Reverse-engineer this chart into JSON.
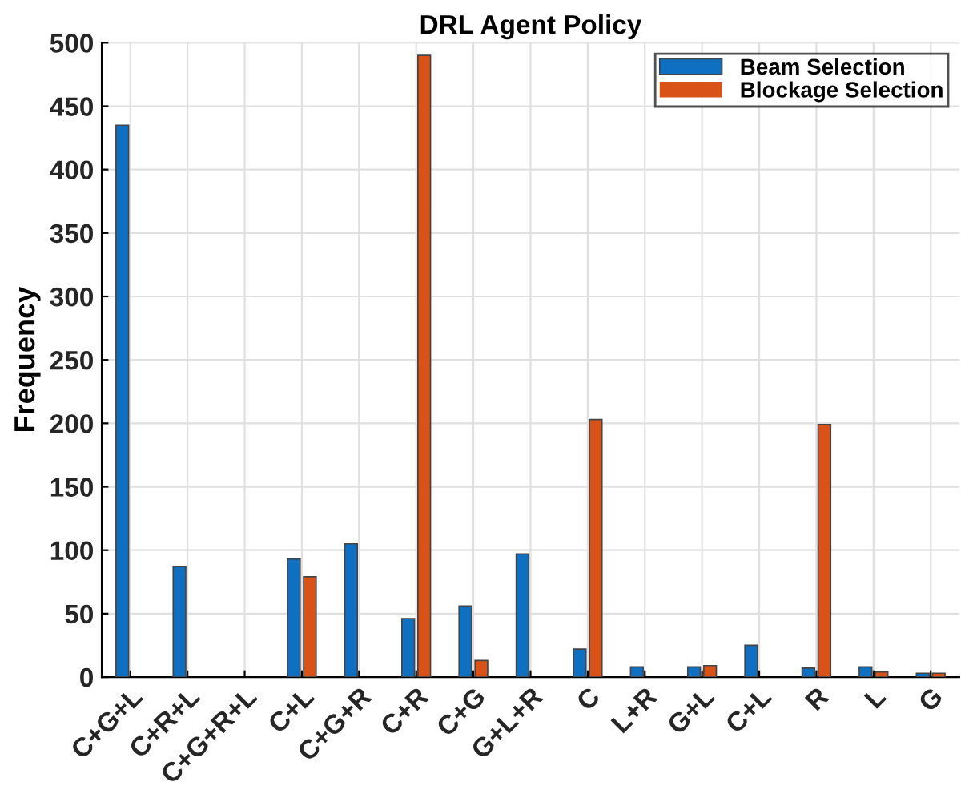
{
  "chart_data": {
    "type": "bar",
    "title": "DRL Agent Policy",
    "ylabel": "Frequency",
    "categories": [
      "C+G+L",
      "C+R+L",
      "C+G+R+L",
      "C+L",
      "C+G+R",
      "C+R",
      "C+G",
      "G+L+R",
      "C",
      "L+R",
      "G+L",
      "C+L",
      "R",
      "L",
      "G"
    ],
    "series": [
      {
        "name": "Beam Selection",
        "color": "#0f6fc0",
        "values": [
          435,
          87,
          0,
          93,
          105,
          46,
          56,
          97,
          22,
          8,
          8,
          25,
          7,
          8,
          3
        ]
      },
      {
        "name": "Blockage Selection",
        "color": "#d95319",
        "values": [
          0,
          0,
          0,
          79,
          0,
          490,
          13,
          0,
          203,
          0,
          9,
          0,
          199,
          4,
          3
        ]
      }
    ],
    "ylim": [
      0,
      500
    ],
    "yticks": [
      0,
      50,
      100,
      150,
      200,
      250,
      300,
      350,
      400,
      450,
      500
    ],
    "grid": true,
    "legend": "top right"
  }
}
